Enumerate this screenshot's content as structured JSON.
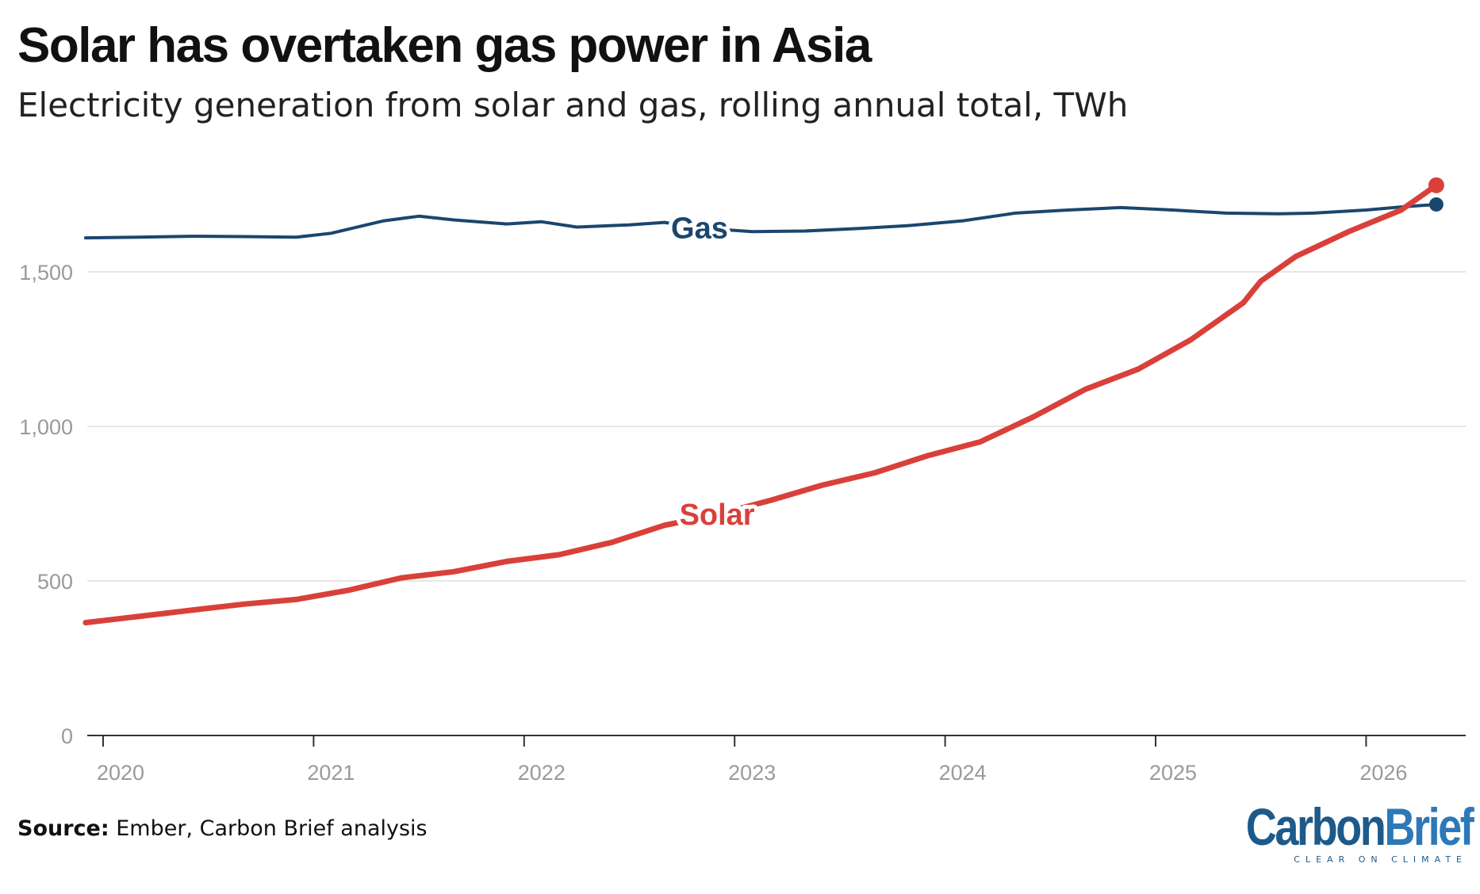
{
  "header": {
    "title": "Solar has overtaken gas power in Asia",
    "subtitle": "Electricity generation from solar and gas, rolling annual total, TWh"
  },
  "footer": {
    "source_label": "Source:",
    "source_text": " Ember, Carbon Brief analysis"
  },
  "logo": {
    "word_carbon": "Carbon",
    "word_brief": "Brief",
    "tagline": "CLEAR ON CLIMATE"
  },
  "colors": {
    "solar": "#d9403a",
    "gas": "#1b466e",
    "grid": "#dddddd",
    "axis_text": "#9a9a9a"
  },
  "chart_data": {
    "type": "line",
    "title": "Solar has overtaken gas power in Asia",
    "subtitle": "Electricity generation from solar and gas, rolling annual total, TWh",
    "xlabel": "",
    "ylabel": "",
    "ylim": [
      0,
      1800
    ],
    "yticks": [
      0,
      500,
      1000,
      1500
    ],
    "ytick_labels": [
      "0",
      "500",
      "1,000",
      "1,500"
    ],
    "xlim": [
      "2019-12",
      "2026-06"
    ],
    "xticks": [
      "2020-01",
      "2021-01",
      "2022-01",
      "2023-01",
      "2024-01",
      "2025-01",
      "2026-01"
    ],
    "xtick_labels": [
      "2020",
      "2021",
      "2022",
      "2023",
      "2024",
      "2025",
      "2026"
    ],
    "grid": true,
    "series": [
      {
        "name": "Gas",
        "label_anchor": "2022-11",
        "points": [
          [
            "2019-12",
            1610
          ],
          [
            "2020-03",
            1612
          ],
          [
            "2020-06",
            1615
          ],
          [
            "2020-09",
            1614
          ],
          [
            "2020-12",
            1612
          ],
          [
            "2021-02",
            1625
          ],
          [
            "2021-05",
            1665
          ],
          [
            "2021-07",
            1680
          ],
          [
            "2021-09",
            1668
          ],
          [
            "2021-12",
            1655
          ],
          [
            "2022-02",
            1662
          ],
          [
            "2022-04",
            1645
          ],
          [
            "2022-07",
            1652
          ],
          [
            "2022-09",
            1660
          ],
          [
            "2022-11",
            1642
          ],
          [
            "2023-02",
            1630
          ],
          [
            "2023-05",
            1632
          ],
          [
            "2023-08",
            1640
          ],
          [
            "2023-11",
            1650
          ],
          [
            "2024-02",
            1665
          ],
          [
            "2024-05",
            1690
          ],
          [
            "2024-08",
            1700
          ],
          [
            "2024-11",
            1708
          ],
          [
            "2025-02",
            1700
          ],
          [
            "2025-05",
            1690
          ],
          [
            "2025-08",
            1688
          ],
          [
            "2025-10",
            1690
          ],
          [
            "2026-01",
            1700
          ],
          [
            "2026-03",
            1710
          ],
          [
            "2026-05",
            1718
          ]
        ]
      },
      {
        "name": "Solar",
        "label_anchor": "2022-12",
        "points": [
          [
            "2019-12",
            365
          ],
          [
            "2020-03",
            385
          ],
          [
            "2020-06",
            405
          ],
          [
            "2020-09",
            425
          ],
          [
            "2020-12",
            440
          ],
          [
            "2021-03",
            470
          ],
          [
            "2021-06",
            510
          ],
          [
            "2021-09",
            530
          ],
          [
            "2021-12",
            563
          ],
          [
            "2022-03",
            585
          ],
          [
            "2022-06",
            625
          ],
          [
            "2022-09",
            680
          ],
          [
            "2022-12",
            715
          ],
          [
            "2023-03",
            760
          ],
          [
            "2023-06",
            810
          ],
          [
            "2023-09",
            850
          ],
          [
            "2023-12",
            905
          ],
          [
            "2024-03",
            950
          ],
          [
            "2024-06",
            1030
          ],
          [
            "2024-09",
            1120
          ],
          [
            "2024-12",
            1185
          ],
          [
            "2025-03",
            1280
          ],
          [
            "2025-06",
            1400
          ],
          [
            "2025-07",
            1470
          ],
          [
            "2025-09",
            1550
          ],
          [
            "2025-12",
            1630
          ],
          [
            "2026-03",
            1700
          ],
          [
            "2026-05",
            1780
          ]
        ]
      }
    ]
  }
}
